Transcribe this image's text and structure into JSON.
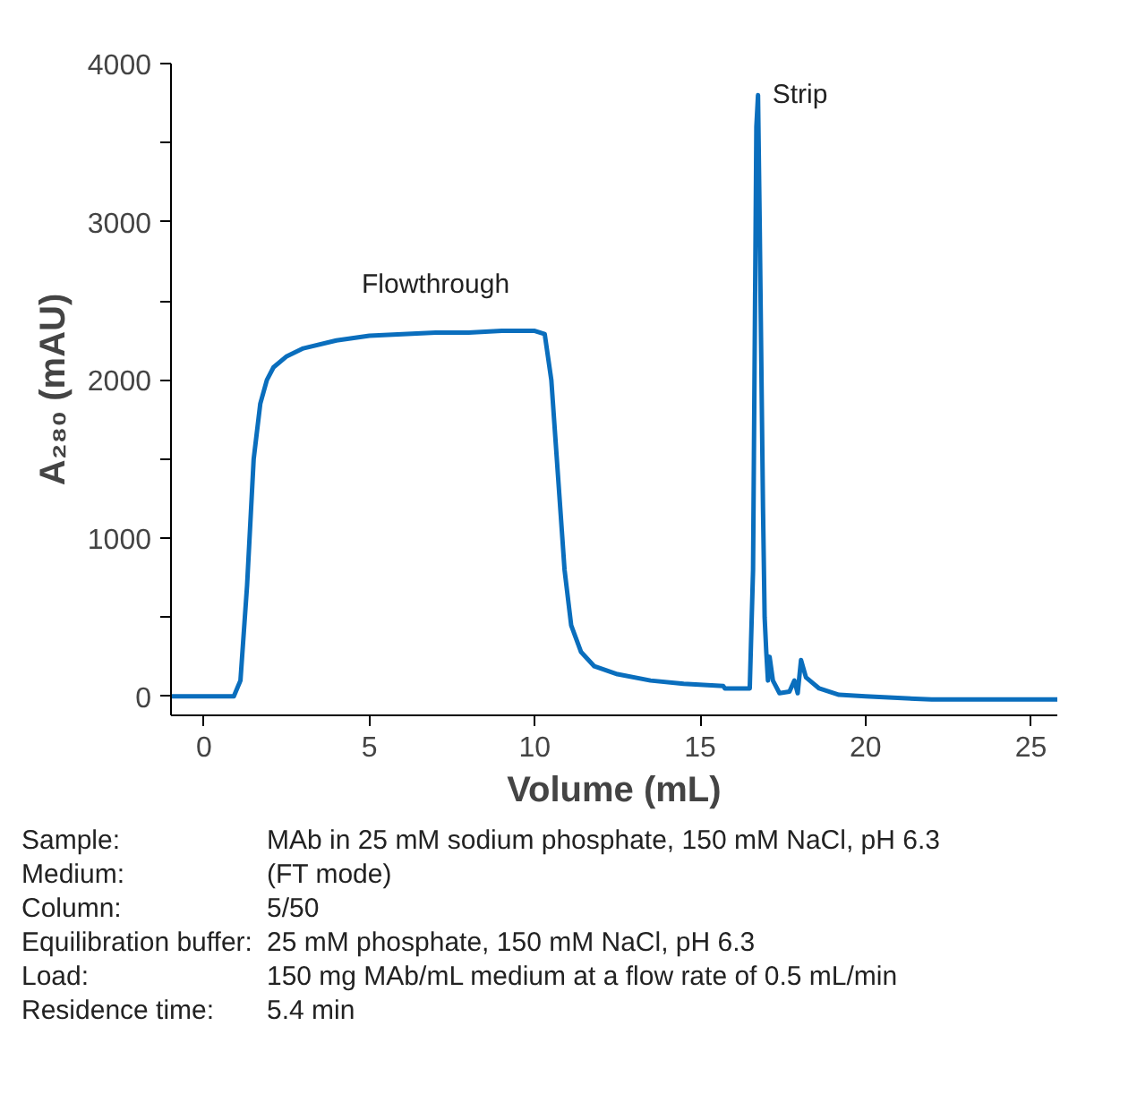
{
  "chart_data": {
    "type": "line",
    "xlabel": "Volume (mL)",
    "ylabel": "A₂₈₀ (mAU)",
    "xlim": [
      -1,
      25.8
    ],
    "ylim": [
      -120,
      4000
    ],
    "xticks": [
      0,
      5,
      10,
      15,
      20,
      25
    ],
    "yticks": [
      0,
      {
        "value": 500,
        "label": null
      },
      1000,
      {
        "value": 1500,
        "label": null
      },
      2000,
      {
        "value": 2500,
        "label": null
      },
      3000,
      {
        "value": 3500,
        "label": null
      },
      4000
    ],
    "grid": false,
    "marker": "none",
    "line_style": "solid",
    "series": [
      {
        "color": "#0a6ebd",
        "x": [
          -1,
          0,
          0.9,
          1.1,
          1.3,
          1.5,
          1.7,
          1.9,
          2.1,
          2.5,
          3,
          4,
          5,
          6,
          7,
          8,
          9,
          10,
          10.3,
          10.5,
          10.7,
          10.9,
          11.1,
          11.4,
          11.8,
          12.5,
          13.5,
          14.5,
          15.7,
          15.75,
          16.5,
          16.6,
          16.7,
          16.75,
          16.8,
          16.9,
          16.95,
          17.0,
          17.05,
          17.1,
          17.2,
          17.4,
          17.7,
          17.85,
          17.95,
          18.05,
          18.2,
          18.6,
          19.2,
          20,
          22,
          25.8
        ],
        "values": [
          0,
          0,
          0,
          100,
          700,
          1500,
          1850,
          2000,
          2080,
          2150,
          2200,
          2250,
          2280,
          2290,
          2300,
          2300,
          2310,
          2310,
          2290,
          2000,
          1400,
          800,
          450,
          280,
          190,
          140,
          100,
          80,
          65,
          50,
          50,
          800,
          3600,
          3800,
          3000,
          1200,
          500,
          280,
          100,
          250,
          100,
          20,
          30,
          100,
          20,
          230,
          120,
          50,
          10,
          0,
          -20,
          -20
        ]
      }
    ],
    "annotations": [
      {
        "text": "Flowthrough",
        "x": 7,
        "y": 2300
      },
      {
        "text": "Strip",
        "x": 16.75,
        "y": 3800
      },
      "Sample: MAb in 25 mM sodium phosphate, 150 mM NaCl, pH 6.3",
      "Medium: (FT mode)",
      "Column: 5/50",
      "Equilibration buffer: 25 mM phosphate, 150 mM NaCl, pH 6.3",
      "Load: 150 mg MAb/mL medium at a flow rate of 0.5 mL/min",
      "Residence time: 5.4 min"
    ]
  }
}
